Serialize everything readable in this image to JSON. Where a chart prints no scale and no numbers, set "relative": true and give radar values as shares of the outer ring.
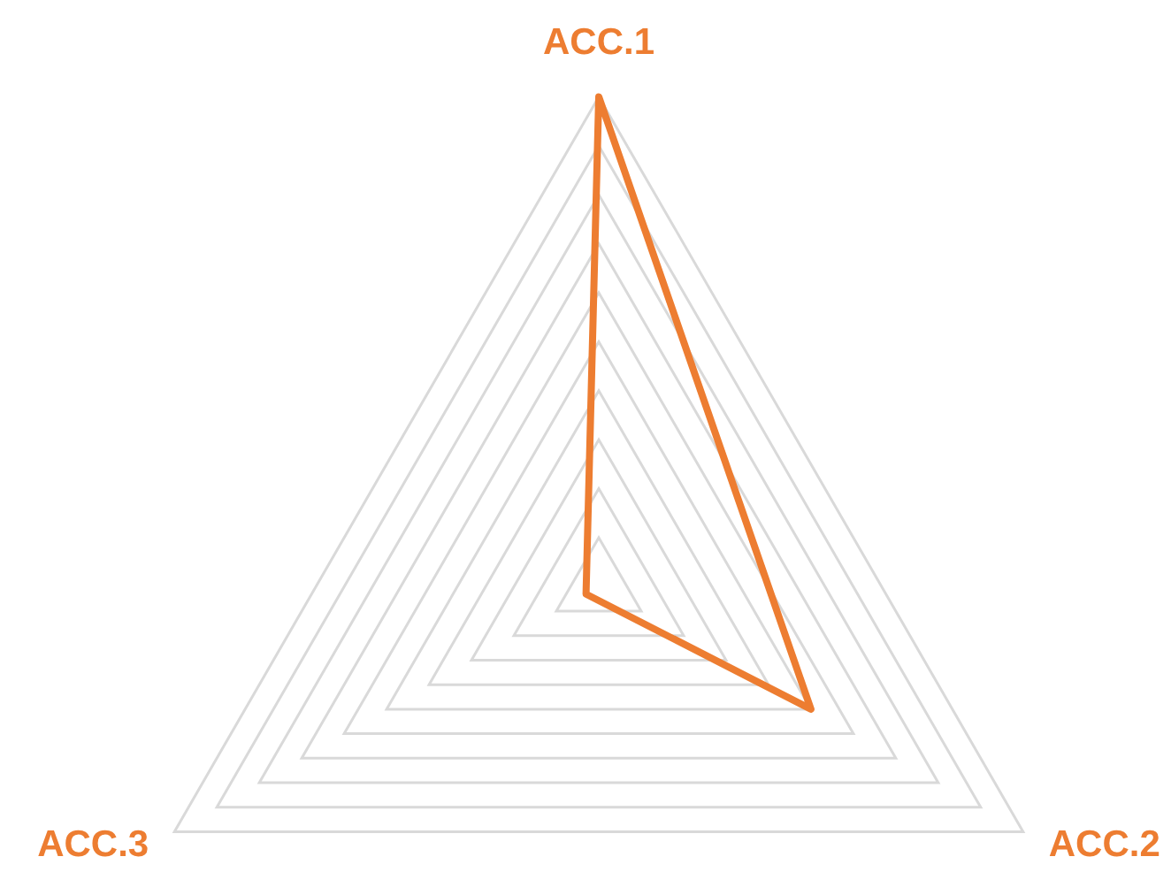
{
  "chart_data": {
    "type": "radar",
    "relative": true,
    "categories": [
      "ACC.1",
      "ACC.2",
      "ACC.3"
    ],
    "series": [
      {
        "color": "#ed7d31",
        "values": [
          1,
          0.5,
          0.03
        ]
      }
    ],
    "grid": true,
    "marker": "none",
    "line_style": "solid"
  }
}
